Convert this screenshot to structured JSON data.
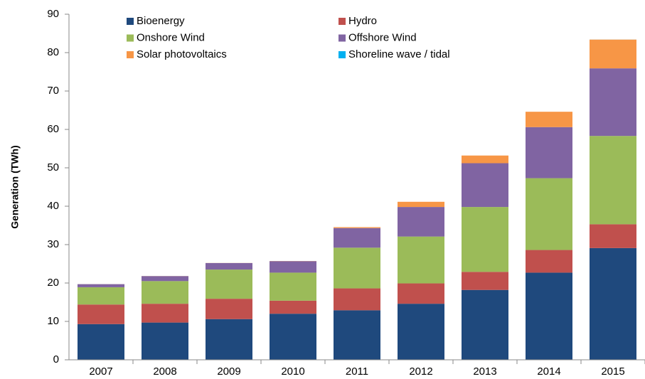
{
  "chart_data": {
    "type": "stacked_bar",
    "y_label": "Generation (TWh)",
    "categories": [
      "2007",
      "2008",
      "2009",
      "2010",
      "2011",
      "2012",
      "2013",
      "2014",
      "2015"
    ],
    "series": [
      {
        "name": "Bioenergy",
        "color": "#1f497d",
        "values": [
          9.3,
          9.7,
          10.6,
          12.0,
          12.9,
          14.6,
          18.2,
          22.7,
          29.1
        ]
      },
      {
        "name": "Hydro",
        "color": "#c0504d",
        "values": [
          5.1,
          4.9,
          5.3,
          3.4,
          5.7,
          5.3,
          4.7,
          5.9,
          6.2
        ]
      },
      {
        "name": "Onshore Wind",
        "color": "#9bbb59",
        "values": [
          4.5,
          5.9,
          7.6,
          7.3,
          10.6,
          12.2,
          16.9,
          18.7,
          23.0
        ]
      },
      {
        "name": "Offshore Wind",
        "color": "#8064a2",
        "values": [
          0.8,
          1.3,
          1.7,
          3.0,
          5.1,
          7.7,
          11.4,
          13.3,
          17.6
        ]
      },
      {
        "name": "Solar photovoltaics",
        "color": "#f79646",
        "values": [
          0.01,
          0.02,
          0.02,
          0.04,
          0.25,
          1.35,
          2.0,
          4.0,
          7.5
        ]
      },
      {
        "name": "Shoreline wave / tidal",
        "color": "#00b0f0",
        "values": [
          0.0,
          0.0,
          0.0,
          0.0,
          0.0,
          0.0,
          0.0,
          0.0,
          0.01
        ]
      }
    ],
    "ylim": [
      0,
      90
    ],
    "yticks": [
      0,
      10,
      20,
      30,
      40,
      50,
      60,
      70,
      80,
      90
    ],
    "grid": false,
    "legend": "top-left"
  }
}
